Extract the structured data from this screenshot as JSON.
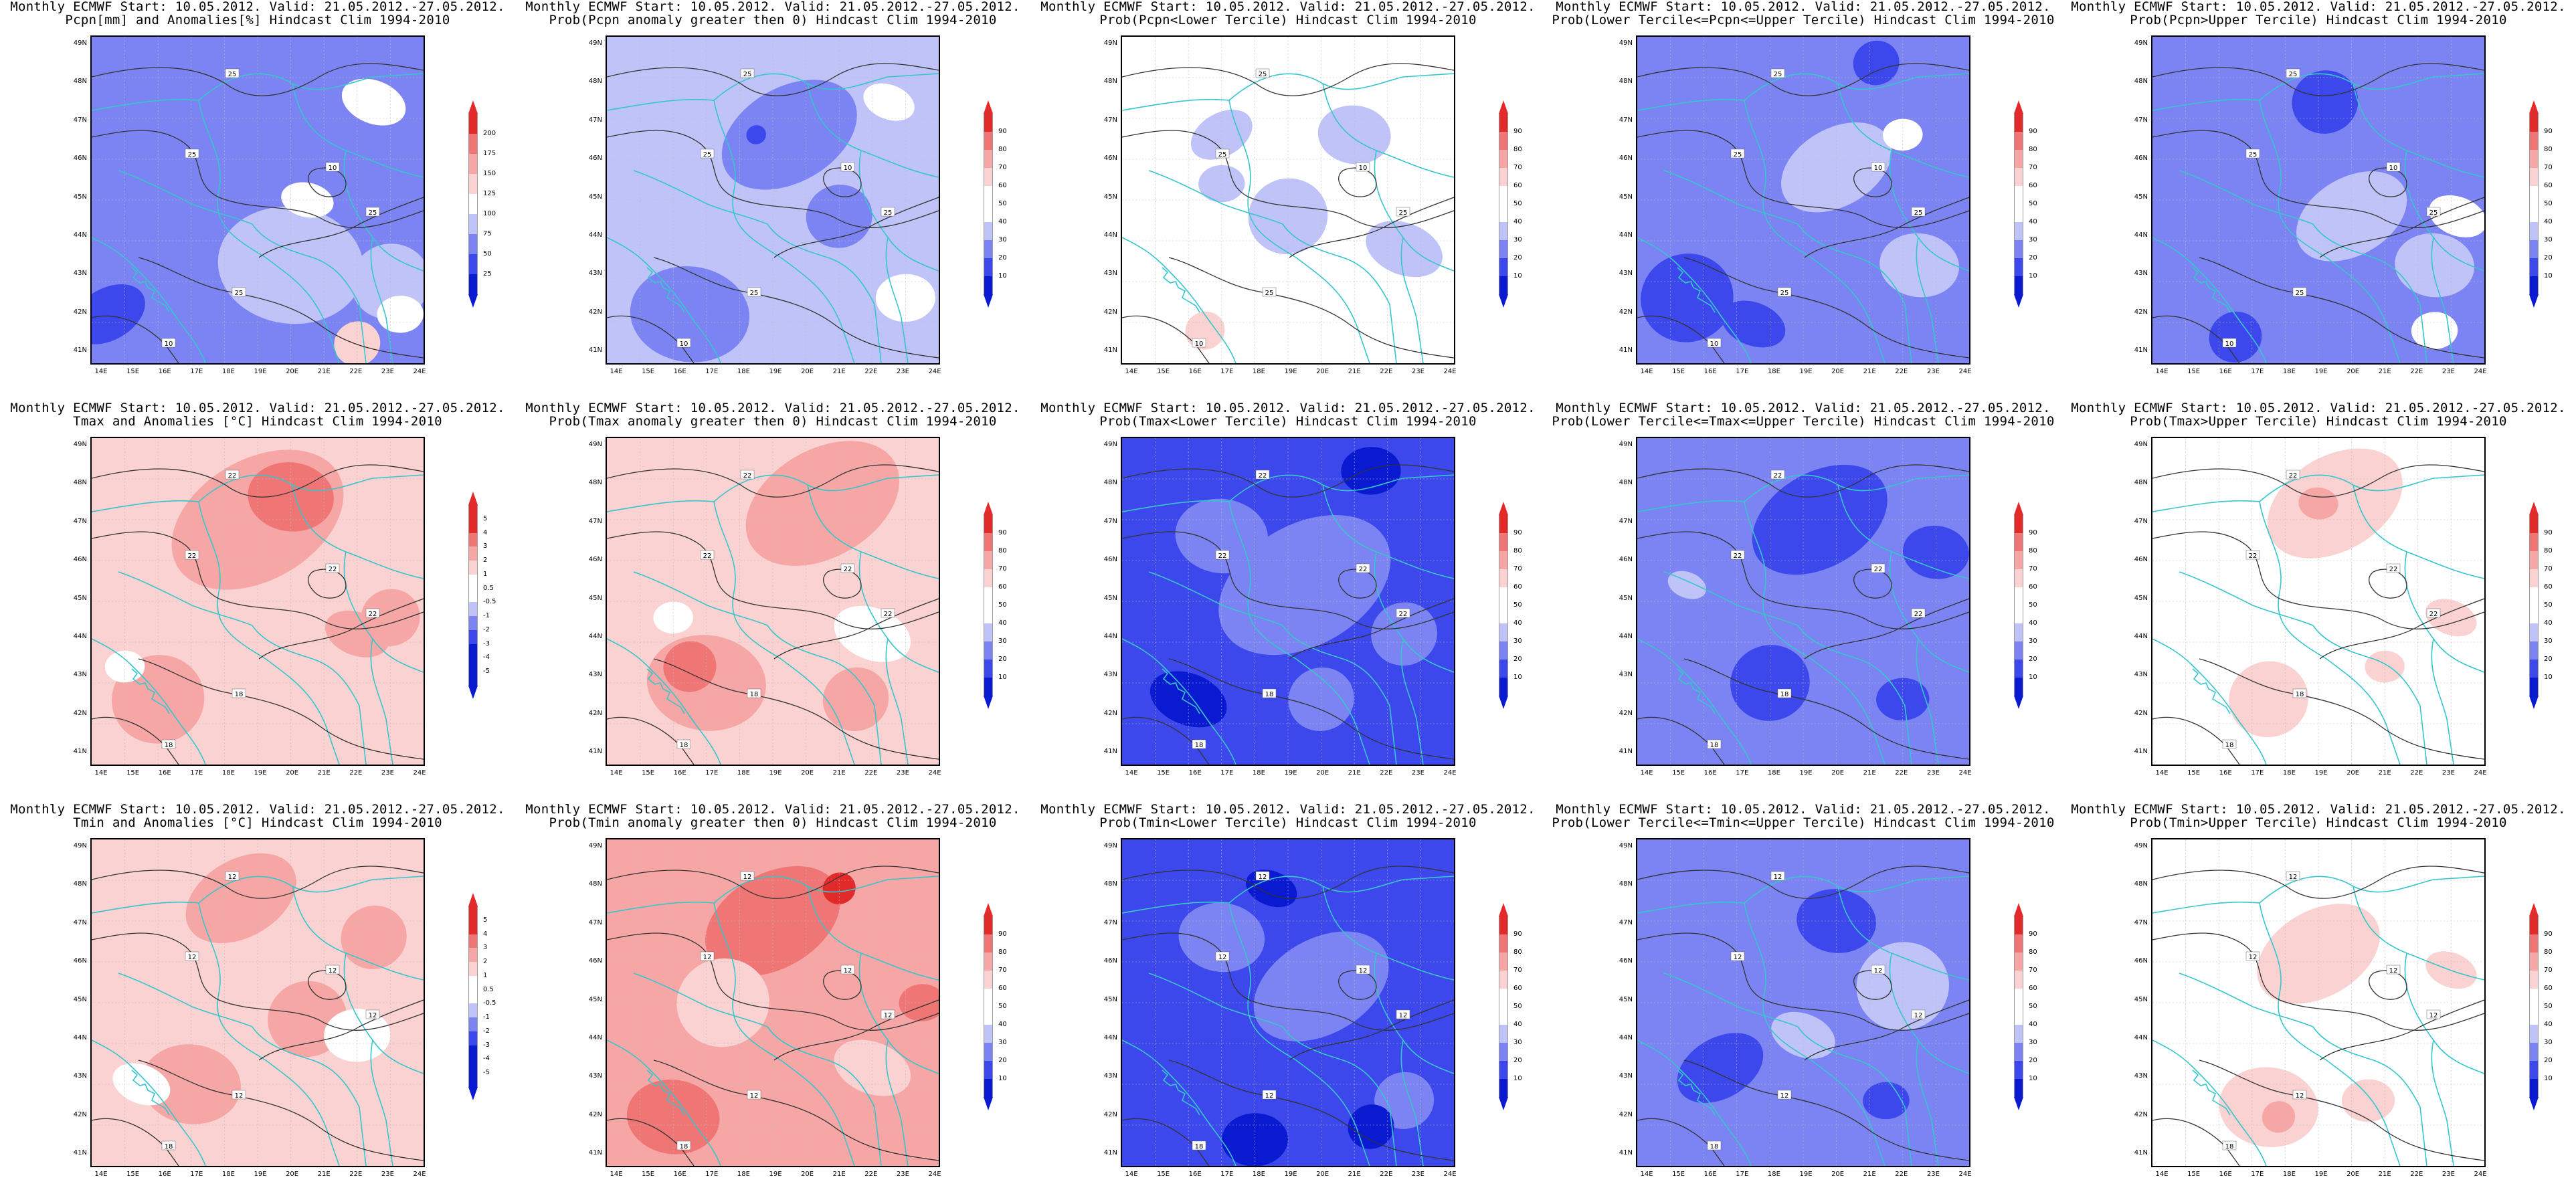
{
  "figure": {
    "header": "Monthly ECMWF Start: 10.05.2012. Valid: 21.05.2012.-27.05.2012.",
    "lat_labels": [
      "49N",
      "48N",
      "47N",
      "46N",
      "45N",
      "44N",
      "43N",
      "42N",
      "41N"
    ],
    "lon_labels": [
      "14E",
      "15E",
      "16E",
      "17E",
      "18E",
      "19E",
      "20E",
      "21E",
      "22E",
      "23E",
      "24E"
    ],
    "colors": {
      "blue_dark": "#0a1ad0",
      "blue_mid": "#3c48ec",
      "blue_light": "#7b84f2",
      "blue_pale": "#bfc3f8",
      "white": "#ffffff",
      "red_pale": "#fbd2d2",
      "red_light": "#f7a6a6",
      "red_mid": "#f07575",
      "red_dark": "#e32a2a",
      "contour": "#333333",
      "border": "#36c6cc"
    },
    "panels": [
      {
        "title": "Pcpn[mm] and Anomalies[%] Hindcast Clim 1994-2010",
        "base": "blue_light",
        "scale": "pcpn",
        "contours": [
          "25",
          "25",
          "25",
          "10",
          "10",
          "25"
        ],
        "blobs": [
          [
            "blue_mid",
            5,
            85,
            12
          ],
          [
            "blue_pale",
            60,
            70,
            22
          ],
          [
            "blue_pale",
            90,
            75,
            12
          ],
          [
            "white",
            85,
            20,
            10
          ],
          [
            "white",
            93,
            85,
            7
          ],
          [
            "red_pale",
            80,
            94,
            7
          ],
          [
            "white",
            65,
            50,
            8
          ]
        ]
      },
      {
        "title": "Prob(Pcpn anomaly greater then 0) Hindcast Clim 1994-2010",
        "base": "blue_pale",
        "scale": "prob",
        "contours": [
          "25",
          "25",
          "25",
          "10",
          "10",
          "25"
        ],
        "blobs": [
          [
            "blue_light",
            55,
            30,
            22
          ],
          [
            "blue_light",
            25,
            85,
            18
          ],
          [
            "blue_light",
            70,
            55,
            10
          ],
          [
            "white",
            85,
            20,
            8
          ],
          [
            "white",
            90,
            80,
            9
          ],
          [
            "blue_mid",
            45,
            30,
            3
          ]
        ]
      },
      {
        "title": "Prob(Pcpn<Lower Tercile) Hindcast Clim 1994-2010",
        "base": "white",
        "scale": "prob",
        "contours": [
          "25",
          "25",
          "25",
          "10",
          "10",
          "25"
        ],
        "blobs": [
          [
            "blue_pale",
            30,
            30,
            10
          ],
          [
            "blue_pale",
            70,
            30,
            11
          ],
          [
            "blue_pale",
            50,
            55,
            12
          ],
          [
            "blue_pale",
            85,
            65,
            12
          ],
          [
            "blue_pale",
            30,
            45,
            7
          ],
          [
            "red_pale",
            25,
            90,
            6
          ]
        ]
      },
      {
        "title": "Prob(Lower Tercile<=Pcpn<=Upper Tercile) Hindcast Clim 1994-2010",
        "base": "blue_light",
        "scale": "prob",
        "contours": [
          "25",
          "25",
          "25",
          "10",
          "10",
          "25"
        ],
        "blobs": [
          [
            "blue_pale",
            60,
            40,
            18
          ],
          [
            "blue_pale",
            85,
            70,
            12
          ],
          [
            "blue_mid",
            15,
            80,
            14
          ],
          [
            "blue_mid",
            35,
            88,
            10
          ],
          [
            "white",
            80,
            30,
            6
          ],
          [
            "blue_mid",
            72,
            8,
            7
          ]
        ]
      },
      {
        "title": "Prob(Pcpn>Upper Tercile) Hindcast Clim 1994-2010",
        "base": "blue_light",
        "scale": "prob",
        "contours": [
          "25",
          "25",
          "25",
          "10",
          "10",
          "25"
        ],
        "blobs": [
          [
            "blue_pale",
            60,
            55,
            18
          ],
          [
            "blue_pale",
            85,
            70,
            12
          ],
          [
            "blue_mid",
            52,
            20,
            10
          ],
          [
            "white",
            92,
            55,
            9
          ],
          [
            "white",
            85,
            90,
            7
          ],
          [
            "blue_mid",
            25,
            92,
            8
          ]
        ]
      },
      {
        "title": "Tmax and Anomalies [°C] Hindcast Clim 1994-2010",
        "base": "red_pale",
        "scale": "anom",
        "contours": [
          "22",
          "22",
          "18",
          "18",
          "22",
          "22"
        ],
        "blobs": [
          [
            "red_light",
            50,
            25,
            28
          ],
          [
            "red_mid",
            60,
            18,
            13
          ],
          [
            "red_light",
            20,
            80,
            14
          ],
          [
            "red_light",
            80,
            60,
            10
          ],
          [
            "white",
            10,
            70,
            6
          ],
          [
            "red_light",
            90,
            55,
            9
          ]
        ]
      },
      {
        "title": "Prob(Tmax anomaly greater then 0) Hindcast Clim 1994-2010",
        "base": "red_pale",
        "scale": "prob",
        "contours": [
          "22",
          "22",
          "18",
          "18",
          "22",
          "22"
        ],
        "blobs": [
          [
            "red_light",
            65,
            20,
            25
          ],
          [
            "red_light",
            30,
            75,
            18
          ],
          [
            "red_mid",
            25,
            70,
            8
          ],
          [
            "white",
            80,
            60,
            12
          ],
          [
            "white",
            20,
            55,
            6
          ],
          [
            "red_light",
            75,
            80,
            10
          ]
        ]
      },
      {
        "title": "Prob(Tmax<Lower Tercile) Hindcast Clim 1994-2010",
        "base": "blue_mid",
        "scale": "prob",
        "contours": [
          "22",
          "22",
          "18",
          "18",
          "22",
          "22"
        ],
        "blobs": [
          [
            "blue_light",
            55,
            45,
            28
          ],
          [
            "blue_light",
            30,
            30,
            14
          ],
          [
            "blue_light",
            85,
            60,
            10
          ],
          [
            "blue_dark",
            20,
            80,
            12
          ],
          [
            "blue_dark",
            75,
            10,
            9
          ],
          [
            "blue_light",
            60,
            80,
            10
          ]
        ]
      },
      {
        "title": "Prob(Lower Tercile<=Tmax<=Upper Tercile) Hindcast Clim 1994-2010",
        "base": "blue_light",
        "scale": "prob",
        "contours": [
          "22",
          "22",
          "18",
          "18",
          "22",
          "22"
        ],
        "blobs": [
          [
            "blue_mid",
            55,
            25,
            22
          ],
          [
            "blue_mid",
            90,
            35,
            10
          ],
          [
            "blue_mid",
            40,
            75,
            12
          ],
          [
            "blue_pale",
            15,
            45,
            6
          ],
          [
            "blue_mid",
            80,
            80,
            8
          ]
        ]
      },
      {
        "title": "Prob(Tmax>Upper Tercile) Hindcast Clim 1994-2010",
        "base": "white",
        "scale": "prob",
        "contours": [
          "22",
          "22",
          "18",
          "18",
          "22",
          "22"
        ],
        "blobs": [
          [
            "red_pale",
            55,
            20,
            22
          ],
          [
            "red_light",
            50,
            20,
            6
          ],
          [
            "red_pale",
            35,
            80,
            12
          ],
          [
            "red_pale",
            90,
            55,
            8
          ],
          [
            "red_pale",
            70,
            70,
            6
          ]
        ]
      },
      {
        "title": "Tmin and Anomalies [°C] Hindcast Clim 1994-2010",
        "base": "red_pale",
        "scale": "anom",
        "contours": [
          "12",
          "12",
          "12",
          "18",
          "12",
          "12"
        ],
        "blobs": [
          [
            "red_light",
            45,
            18,
            18
          ],
          [
            "red_light",
            30,
            75,
            15
          ],
          [
            "red_light",
            65,
            55,
            12
          ],
          [
            "white",
            15,
            75,
            9
          ],
          [
            "white",
            80,
            60,
            10
          ],
          [
            "red_light",
            85,
            30,
            10
          ]
        ]
      },
      {
        "title": "Prob(Tmin anomaly greater then 0) Hindcast Clim 1994-2010",
        "base": "red_light",
        "scale": "prob",
        "contours": [
          "12",
          "12",
          "12",
          "18",
          "12",
          "12"
        ],
        "blobs": [
          [
            "red_mid",
            50,
            25,
            22
          ],
          [
            "red_mid",
            20,
            85,
            14
          ],
          [
            "red_pale",
            35,
            50,
            14
          ],
          [
            "red_pale",
            80,
            70,
            12
          ],
          [
            "red_mid",
            95,
            50,
            7
          ],
          [
            "red_dark",
            70,
            15,
            5
          ]
        ]
      },
      {
        "title": "Prob(Tmin<Lower Tercile) Hindcast Clim 1994-2010",
        "base": "blue_mid",
        "scale": "prob",
        "contours": [
          "12",
          "12",
          "12",
          "18",
          "12",
          "12"
        ],
        "blobs": [
          [
            "blue_light",
            60,
            45,
            22
          ],
          [
            "blue_light",
            30,
            30,
            13
          ],
          [
            "blue_light",
            85,
            80,
            9
          ],
          [
            "blue_dark",
            45,
            15,
            8
          ],
          [
            "blue_dark",
            40,
            92,
            10
          ],
          [
            "blue_dark",
            75,
            88,
            7
          ]
        ]
      },
      {
        "title": "Prob(Lower Tercile<=Tmin<=Upper Tercile) Hindcast Clim 1994-2010",
        "base": "blue_light",
        "scale": "prob",
        "contours": [
          "12",
          "12",
          "12",
          "18",
          "12",
          "12"
        ],
        "blobs": [
          [
            "blue_mid",
            25,
            70,
            14
          ],
          [
            "blue_mid",
            60,
            25,
            12
          ],
          [
            "blue_pale",
            80,
            45,
            14
          ],
          [
            "blue_pale",
            50,
            60,
            10
          ],
          [
            "blue_mid",
            75,
            80,
            7
          ]
        ]
      },
      {
        "title": "Prob(Tmin>Upper Tercile) Hindcast Clim 1994-2010",
        "base": "white",
        "scale": "prob",
        "contours": [
          "12",
          "12",
          "12",
          "18",
          "12",
          "12"
        ],
        "blobs": [
          [
            "red_pale",
            50,
            35,
            20
          ],
          [
            "red_pale",
            35,
            82,
            15
          ],
          [
            "red_light",
            38,
            85,
            5
          ],
          [
            "red_pale",
            90,
            40,
            8
          ],
          [
            "red_pale",
            65,
            80,
            8
          ]
        ]
      }
    ],
    "scales": {
      "pcpn": {
        "labels": [
          "200",
          "175",
          "150",
          "125",
          "100",
          "75",
          "50",
          "25"
        ],
        "colors": [
          "red_dark",
          "red_mid",
          "red_light",
          "red_pale",
          "white",
          "blue_pale",
          "blue_light",
          "blue_mid",
          "blue_dark"
        ]
      },
      "prob": {
        "labels": [
          "90",
          "80",
          "70",
          "60",
          "50",
          "40",
          "30",
          "20",
          "10"
        ],
        "colors": [
          "red_dark",
          "red_mid",
          "red_light",
          "red_pale",
          "white",
          "white",
          "blue_pale",
          "blue_light",
          "blue_mid",
          "blue_dark"
        ]
      },
      "anom": {
        "labels": [
          "5",
          "4",
          "3",
          "2",
          "1",
          "0.5",
          "-0.5",
          "-1",
          "-2",
          "-3",
          "-4",
          "-5"
        ],
        "colors": [
          "red_dark",
          "red_dark",
          "red_mid",
          "red_light",
          "red_pale",
          "white",
          "white",
          "blue_pale",
          "blue_light",
          "blue_mid",
          "blue_dark",
          "blue_dark",
          "blue_dark"
        ]
      }
    }
  }
}
